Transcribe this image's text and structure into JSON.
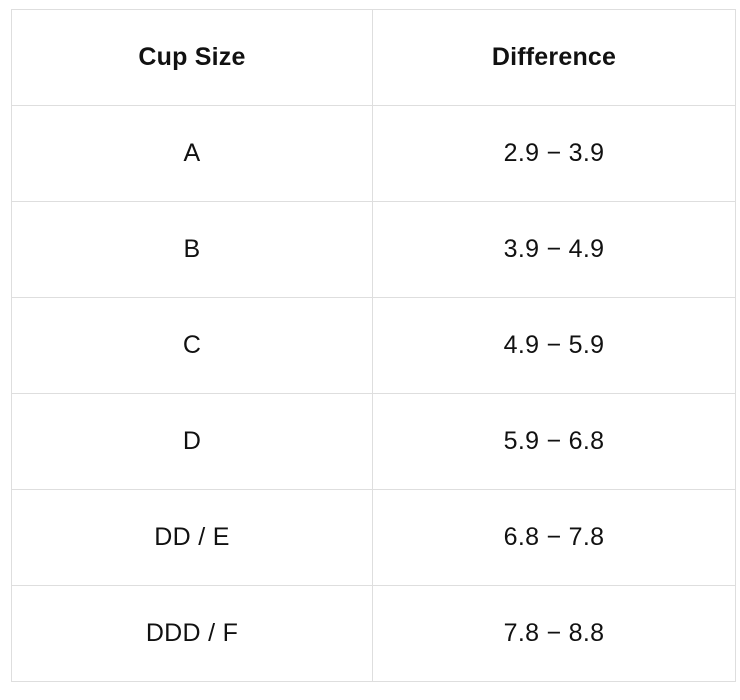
{
  "table": {
    "headers": [
      "Cup Size",
      "Difference"
    ],
    "rows": [
      [
        "A",
        "2.9 − 3.9"
      ],
      [
        "B",
        "3.9 − 4.9"
      ],
      [
        "C",
        "4.9 − 5.9"
      ],
      [
        "D",
        "5.9 − 6.8"
      ],
      [
        "DD / E",
        "6.8 − 7.8"
      ],
      [
        "DDD / F",
        "7.8 − 8.8"
      ]
    ]
  },
  "colors": {
    "border": "#dedede",
    "text": "#111111",
    "background": "#ffffff"
  }
}
